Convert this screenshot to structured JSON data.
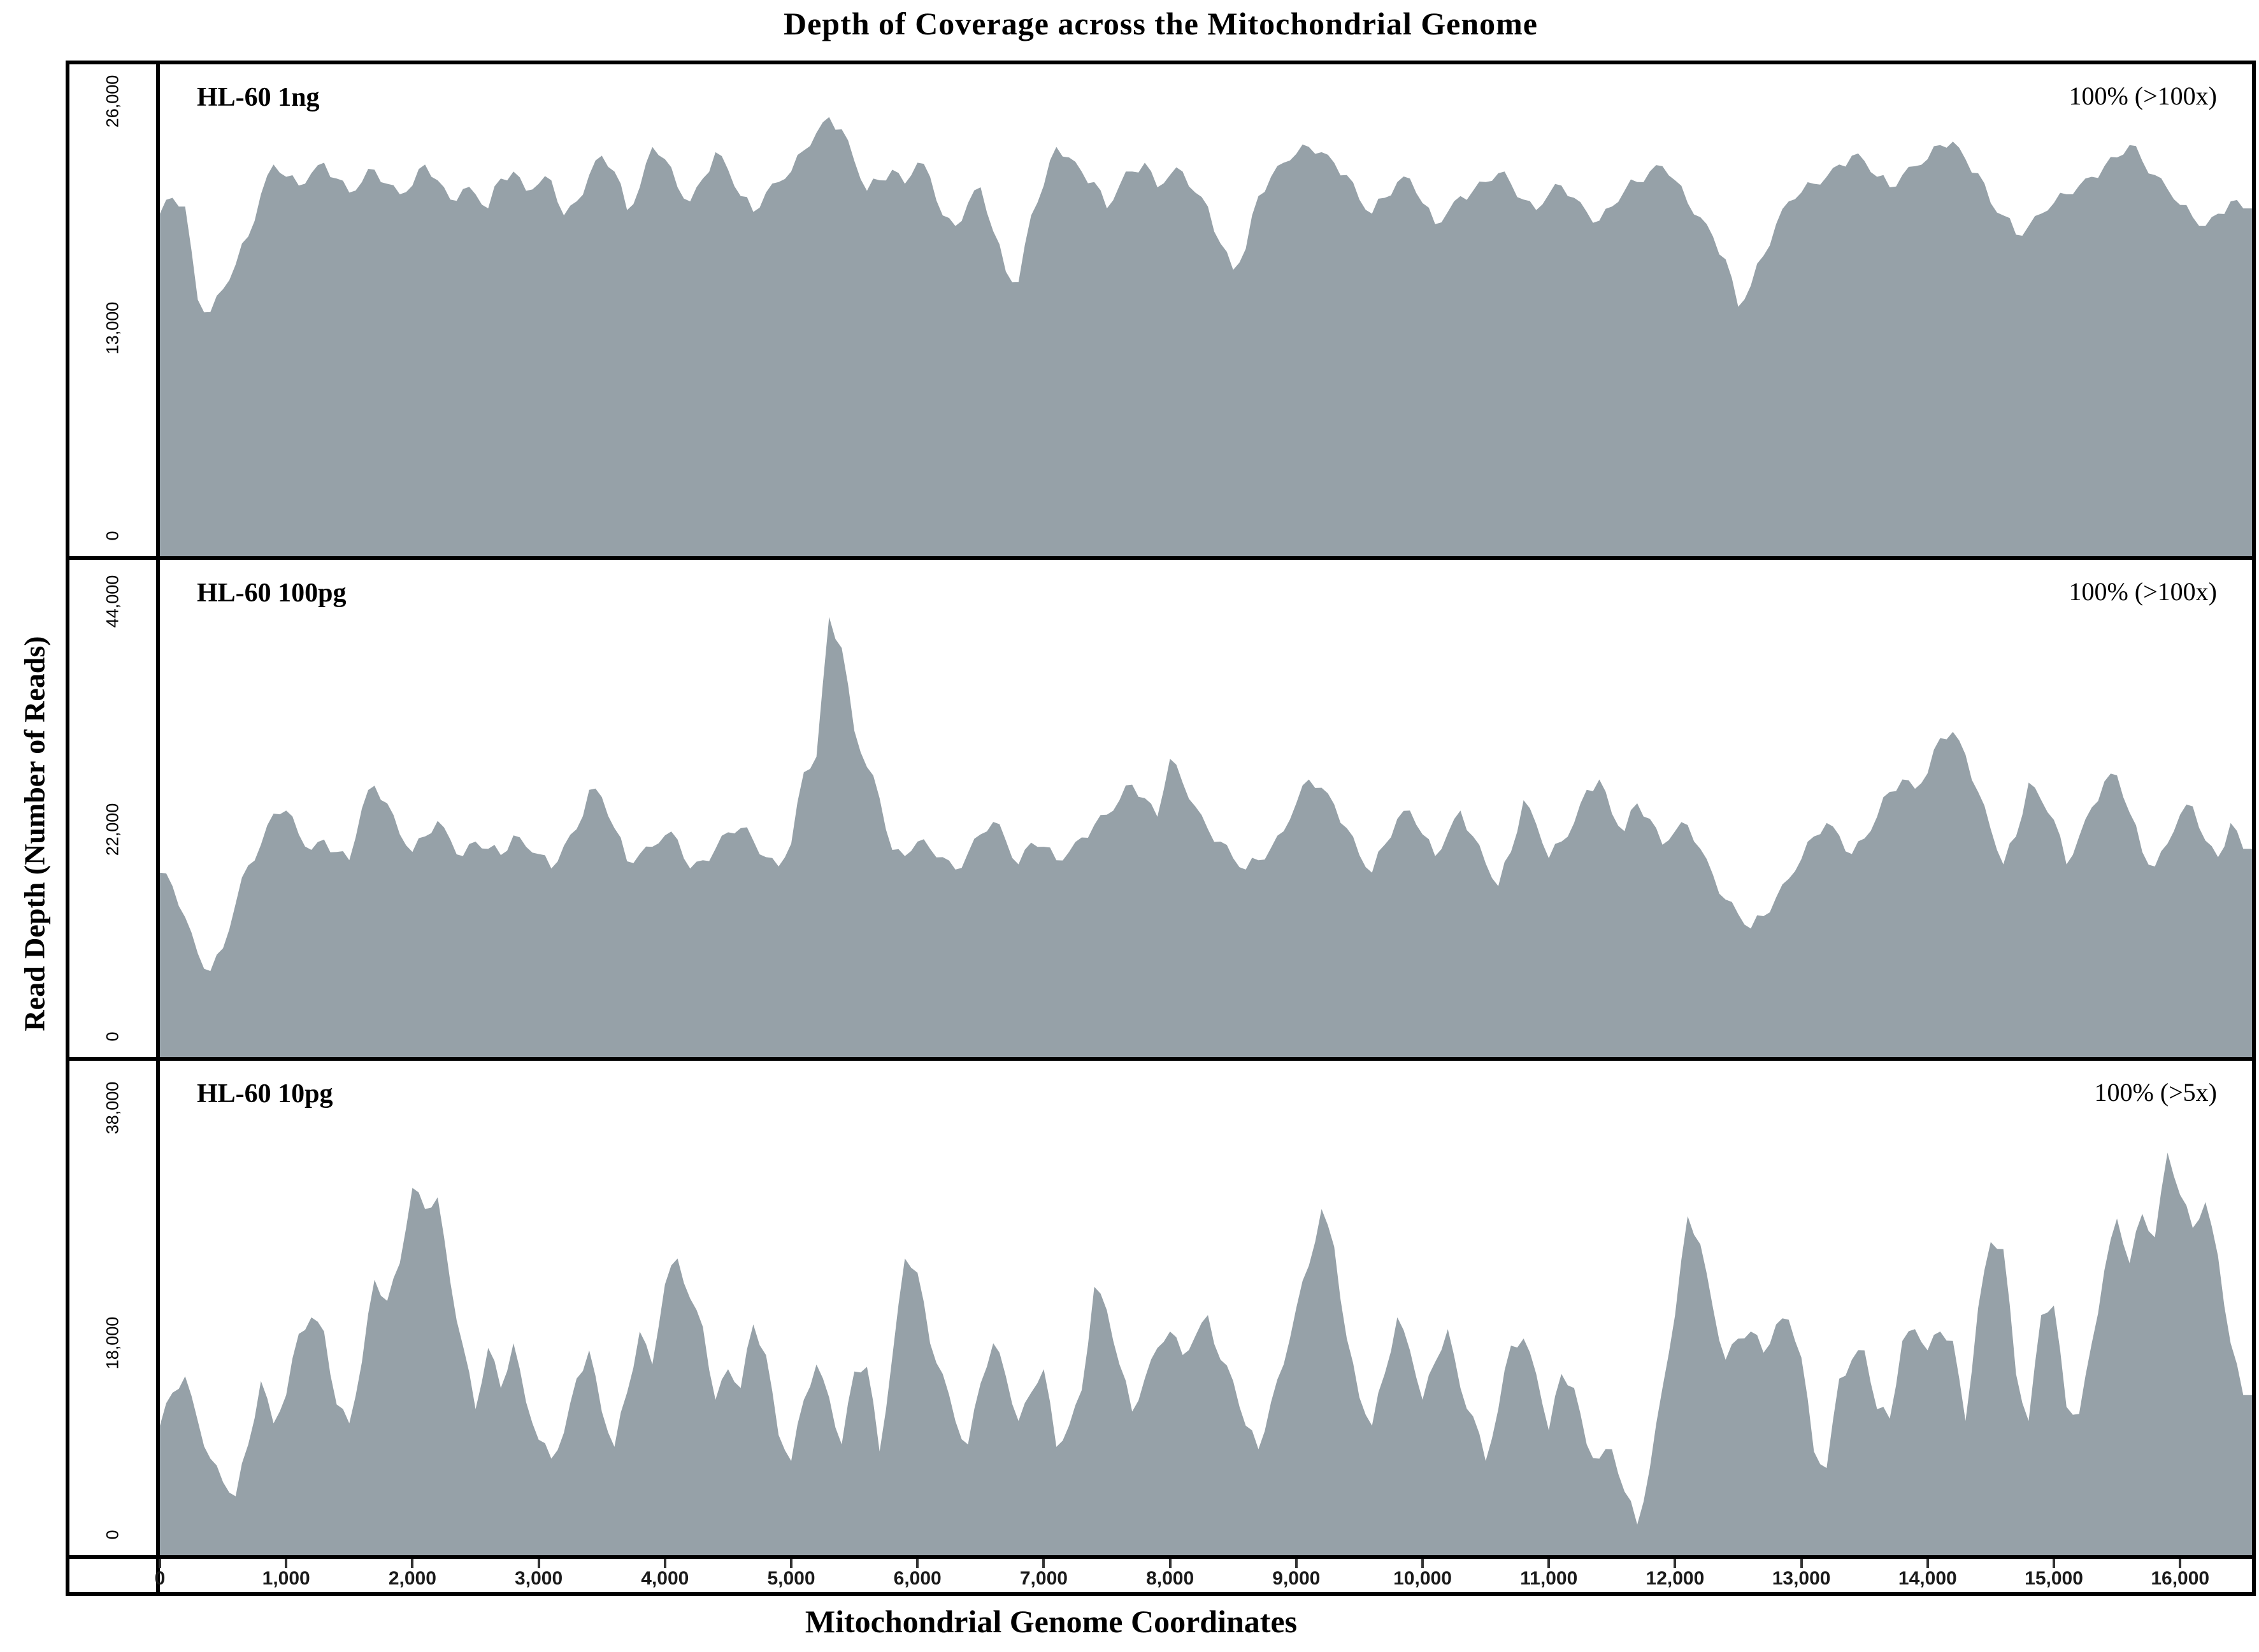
{
  "title": "Depth of Coverage across the Mitochondrial Genome",
  "xlabel": "Mitochondrial Genome Coordinates",
  "ylabel": "Read Depth (Number of Reads)",
  "colors": {
    "fill": "#96A1A8",
    "border": "#000000",
    "background": "#ffffff"
  },
  "render": {
    "jitter": 0.011
  },
  "x_axis": {
    "max_bp": 16569,
    "tick_values": [
      0,
      1000,
      2000,
      3000,
      4000,
      5000,
      6000,
      7000,
      8000,
      9000,
      10000,
      11000,
      12000,
      13000,
      14000,
      15000,
      16000
    ],
    "tick_labels": [
      "0",
      "1,000",
      "2,000",
      "3,000",
      "4,000",
      "5,000",
      "6,000",
      "7,000",
      "8,000",
      "9,000",
      "10,000",
      "11,000",
      "12,000",
      "13,000",
      "14,000",
      "15,000",
      "16,000"
    ]
  },
  "chart_data": [
    {
      "type": "area",
      "label": "HL-60 1ng",
      "annotation": "100% (>100x)",
      "axis_max": 28000,
      "yticks": [
        {
          "value": 26000,
          "label": "26,000"
        },
        {
          "value": 13000,
          "label": "13,000"
        },
        {
          "value": 0,
          "label": "0"
        }
      ],
      "x_start": 0,
      "x_step": 100,
      "values": [
        19500,
        20400,
        19900,
        14600,
        13900,
        15200,
        16600,
        18200,
        20600,
        22300,
        21600,
        21100,
        21800,
        22400,
        21500,
        20700,
        21300,
        22000,
        21200,
        20600,
        21100,
        22300,
        21400,
        20300,
        20900,
        20600,
        19800,
        21500,
        21900,
        20800,
        21200,
        21400,
        19400,
        20200,
        21700,
        22800,
        21900,
        19700,
        21000,
        23300,
        22600,
        21000,
        20200,
        21500,
        23000,
        22000,
        20500,
        19600,
        20700,
        21300,
        21900,
        23100,
        24100,
        25000,
        24300,
        22500,
        20800,
        21400,
        22000,
        21200,
        22400,
        21600,
        19400,
        18800,
        20100,
        21000,
        18500,
        16200,
        15600,
        19400,
        21100,
        23300,
        22700,
        21900,
        21300,
        19800,
        21100,
        21900,
        22400,
        21000,
        21700,
        21900,
        20700,
        19900,
        17800,
        16300,
        17500,
        20500,
        21600,
        22400,
        22900,
        23300,
        23000,
        22400,
        21700,
        20300,
        19500,
        20400,
        21300,
        21500,
        20100,
        18900,
        19600,
        20500,
        20800,
        21300,
        21800,
        21200,
        20300,
        19700,
        20600,
        21100,
        20400,
        19600,
        19100,
        19900,
        20800,
        21300,
        21900,
        22200,
        21400,
        20100,
        19300,
        18200,
        16900,
        14200,
        15400,
        17100,
        18900,
        20200,
        20700,
        21200,
        21600,
        22300,
        22800,
        22500,
        21600,
        21000,
        21700,
        22200,
        22600,
        23400,
        23600,
        22600,
        21800,
        20100,
        19400,
        18300,
        18800,
        19500,
        20100,
        20600,
        21100,
        21600,
        22200,
        22700,
        23400,
        22500,
        21700,
        20900,
        20000,
        19300,
        18800,
        19500,
        20200,
        19800
      ]
    },
    {
      "type": "area",
      "label": "HL-60 100pg",
      "annotation": "100% (>100x)",
      "axis_max": 48000,
      "yticks": [
        {
          "value": 44000,
          "label": "44,000"
        },
        {
          "value": 22000,
          "label": "22,000"
        },
        {
          "value": 0,
          "label": "0"
        }
      ],
      "x_start": 0,
      "x_step": 100,
      "values": [
        17800,
        16500,
        13500,
        10000,
        8300,
        10500,
        14800,
        18500,
        20500,
        23500,
        23800,
        21500,
        20000,
        21000,
        19800,
        19000,
        24000,
        26200,
        24500,
        21500,
        19800,
        21300,
        22800,
        21000,
        19400,
        20800,
        20100,
        19500,
        21400,
        20300,
        19600,
        18200,
        20400,
        22000,
        25800,
        25100,
        22100,
        18900,
        19600,
        20300,
        21400,
        21000,
        18200,
        19000,
        20100,
        21700,
        22100,
        20900,
        19300,
        18400,
        20600,
        27500,
        29000,
        42500,
        39500,
        31500,
        28000,
        25000,
        20000,
        19400,
        20800,
        20100,
        19300,
        18100,
        19700,
        21500,
        22700,
        20900,
        18600,
        20700,
        20300,
        19000,
        19800,
        21200,
        22400,
        23400,
        24800,
        26300,
        25000,
        23200,
        28800,
        26500,
        24200,
        22000,
        20800,
        19200,
        18100,
        19000,
        20200,
        21800,
        24500,
        26800,
        26000,
        24400,
        22100,
        19500,
        17800,
        20500,
        23000,
        23800,
        21500,
        19400,
        21600,
        23800,
        21300,
        18700,
        16500,
        19800,
        24800,
        22500,
        19200,
        20800,
        22600,
        25800,
        26800,
        23500,
        21800,
        24500,
        23000,
        20500,
        21800,
        22400,
        20100,
        17600,
        15200,
        13800,
        12400,
        13600,
        15400,
        17200,
        19100,
        21300,
        22600,
        21400,
        19600,
        21100,
        23200,
        25600,
        26800,
        25900,
        27400,
        30800,
        31400,
        29200,
        25600,
        22000,
        18600,
        21300,
        26500,
        24800,
        22900,
        18600,
        21300,
        24100,
        26600,
        27200,
        23600,
        19800,
        18400,
        20600,
        23400,
        24200,
        20900,
        19300,
        22600,
        20100
      ]
    },
    {
      "type": "area",
      "label": "HL-60 10pg",
      "annotation": "100% (>5x)",
      "axis_max": 42000,
      "yticks": [
        {
          "value": 38000,
          "label": "38,000"
        },
        {
          "value": 18000,
          "label": "18,000"
        },
        {
          "value": 0,
          "label": "0"
        }
      ],
      "x_start": 0,
      "x_step": 100,
      "values": [
        11000,
        13800,
        15200,
        11400,
        8200,
        6200,
        5000,
        9400,
        14800,
        11200,
        13600,
        18800,
        20200,
        19000,
        12800,
        11200,
        16400,
        23400,
        21600,
        24800,
        31200,
        29400,
        30400,
        23200,
        17800,
        12400,
        17600,
        14200,
        18000,
        13000,
        9800,
        8200,
        10400,
        15000,
        17400,
        12200,
        9200,
        13800,
        19000,
        16200,
        23000,
        25200,
        21800,
        19400,
        13200,
        15800,
        14200,
        19600,
        17000,
        10200,
        8000,
        13200,
        16200,
        13400,
        9400,
        15600,
        16000,
        8800,
        16800,
        25200,
        24000,
        18000,
        15400,
        11400,
        9400,
        14600,
        18000,
        15200,
        11400,
        13800,
        15800,
        9200,
        11000,
        14000,
        22800,
        20800,
        16200,
        12200,
        15000,
        17600,
        19000,
        17000,
        18600,
        20400,
        16600,
        14800,
        11000,
        9000,
        13000,
        16200,
        21000,
        24600,
        29400,
        26200,
        18400,
        13400,
        11000,
        15400,
        20200,
        17400,
        13200,
        16400,
        19200,
        14200,
        11800,
        8000,
        12400,
        17800,
        18400,
        15400,
        10600,
        15400,
        14200,
        9400,
        8200,
        9000,
        5400,
        2600,
        7400,
        14200,
        20400,
        28800,
        26400,
        21000,
        16600,
        18400,
        19000,
        17200,
        19600,
        20000,
        16800,
        8800,
        7400,
        15000,
        16600,
        17400,
        12400,
        11600,
        18200,
        19200,
        17400,
        19000,
        18200,
        11400,
        21000,
        26600,
        26000,
        15400,
        11400,
        20400,
        21200,
        12600,
        12000,
        18000,
        24200,
        28600,
        24800,
        29000,
        27000,
        34200,
        30600,
        27800,
        30000,
        25400,
        18000,
        13600
      ]
    }
  ]
}
